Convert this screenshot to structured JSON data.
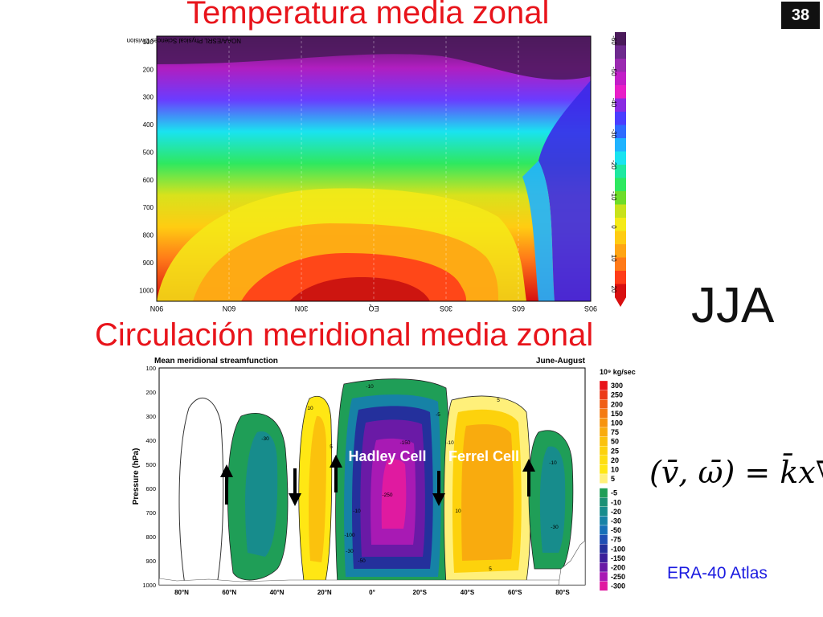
{
  "slide": {
    "number": "38",
    "season": "JJA",
    "title_temperature": "Temperatura media zonal",
    "title_circulation": "Circulación meridional media zonal",
    "formula": "(v̄, ω̄) = k̄x∇ψ̄",
    "credit": "ERA-40 Atlas"
  },
  "chart_data": [
    {
      "type": "heatmap",
      "title": "Temperatura media zonal",
      "source_label": "NOAA/ESRL Physical Sciences Division",
      "xlabels": [
        "90N",
        "60N",
        "30N",
        "EQ",
        "30S",
        "60S",
        "90S"
      ],
      "ylabels": [
        "100",
        "200",
        "300",
        "400",
        "500",
        "600",
        "700",
        "800",
        "900",
        "1000"
      ],
      "ylim": [
        1000,
        100
      ],
      "colorbar": {
        "ticks": [
          "-60",
          "-50",
          "-40",
          "-30",
          "-20",
          "-10",
          "0",
          "10",
          "20"
        ],
        "colors": [
          "#4a1a5a",
          "#6e2a8e",
          "#9a2ab0",
          "#c21ec8",
          "#e81ec8",
          "#8a2be2",
          "#4b3dff",
          "#2f6bff",
          "#1fb3ff",
          "#19e3f0",
          "#1ee8a0",
          "#2ee860",
          "#6edc2a",
          "#c8e21c",
          "#f5ea18",
          "#ffcc12",
          "#ffa514",
          "#ff7a18",
          "#ff3c18",
          "#d80f10"
        ]
      }
    },
    {
      "type": "heatmap",
      "title": "Mean meridional streamfunction",
      "period": "June-August",
      "units": "10⁹ kg/sec",
      "ylabel": "Pressure (hPa)",
      "xlabels": [
        "80°N",
        "60°N",
        "40°N",
        "20°N",
        "0°",
        "20°S",
        "40°S",
        "60°S",
        "80°S"
      ],
      "ylabels": [
        "100",
        "200",
        "300",
        "400",
        "500",
        "600",
        "700",
        "800",
        "900",
        "1000"
      ],
      "ylim": [
        1000,
        100
      ],
      "cells": [
        "Hadley Cell",
        "Ferrel Cell"
      ],
      "contour_labels": [
        "-10",
        "10",
        "5",
        "-5",
        "-30",
        "-150",
        "-250",
        "5",
        "-10",
        "-30",
        "-50",
        "-100",
        "10",
        "-10",
        "5",
        "-10",
        "-30"
      ],
      "legend": [
        {
          "value": "300",
          "color": "#e8141b"
        },
        {
          "value": "250",
          "color": "#ec3a17"
        },
        {
          "value": "200",
          "color": "#f05d14"
        },
        {
          "value": "150",
          "color": "#f47a12"
        },
        {
          "value": "100",
          "color": "#f7930f"
        },
        {
          "value": "75",
          "color": "#f9ab0e"
        },
        {
          "value": "50",
          "color": "#fbc20d"
        },
        {
          "value": "25",
          "color": "#fdd20c"
        },
        {
          "value": "20",
          "color": "#fede10"
        },
        {
          "value": "10",
          "color": "#ffe714"
        },
        {
          "value": "5",
          "color": "#fff07a"
        },
        {
          "value": "-5",
          "color": "#1f9e57"
        },
        {
          "value": "-10",
          "color": "#1a9074"
        },
        {
          "value": "-20",
          "color": "#178c8c"
        },
        {
          "value": "-30",
          "color": "#1682a6"
        },
        {
          "value": "-50",
          "color": "#1670b8"
        },
        {
          "value": "-75",
          "color": "#1f4fb4"
        },
        {
          "value": "-100",
          "color": "#24309c"
        },
        {
          "value": "-150",
          "color": "#3c1f9a"
        },
        {
          "value": "-200",
          "color": "#6a1aa6"
        },
        {
          "value": "-250",
          "color": "#a81ab4"
        },
        {
          "value": "-300",
          "color": "#e01aa0"
        }
      ]
    }
  ]
}
